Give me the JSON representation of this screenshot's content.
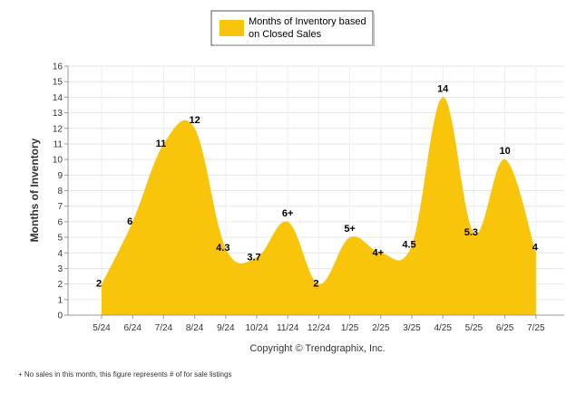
{
  "chart_data": {
    "type": "area",
    "categories": [
      "5/24",
      "6/24",
      "7/24",
      "8/24",
      "9/24",
      "10/24",
      "11/24",
      "12/24",
      "1/25",
      "2/25",
      "3/25",
      "4/25",
      "5/25",
      "6/25",
      "7/25"
    ],
    "series": [
      {
        "name": "Months of Inventory based on Closed Sales",
        "legend_lines": [
          "Months of Inventory based",
          "on Closed Sales"
        ],
        "values": [
          2,
          6,
          11,
          12,
          4.3,
          3.7,
          6,
          2,
          5,
          4,
          4.5,
          14,
          5.3,
          10,
          4
        ],
        "labels": [
          "2",
          "6",
          "11",
          "12",
          "4.3",
          "3.7",
          "6+",
          "2",
          "5+",
          "4+",
          "4.5",
          "14",
          "5.3",
          "10",
          "4"
        ],
        "color": "#F9C50A"
      }
    ],
    "ylabel": "Months of Inventory",
    "ylim": [
      0,
      16
    ],
    "yticks": [
      0,
      1,
      2,
      3,
      4,
      5,
      6,
      7,
      8,
      9,
      10,
      11,
      12,
      13,
      14,
      15,
      16
    ],
    "grid": true,
    "legend_position": "top-center"
  },
  "copyright": "Copyright © Trendgraphix, Inc.",
  "footnote": "+  No sales in this month, this figure represents # of for sale listings"
}
